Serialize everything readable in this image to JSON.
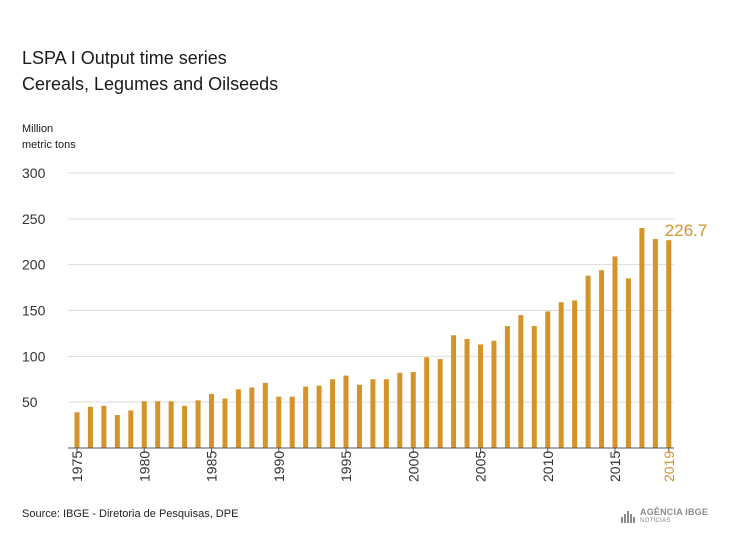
{
  "header": {
    "title_line1": "LSPA I Output time series",
    "title_line2": "Cereals, Legumes and Oilseeds",
    "unit_line1": "Million",
    "unit_line2": "metric tons"
  },
  "footer": {
    "source": "Source: IBGE - Diretoria de Pesquisas, DPE",
    "logo_main": "AGÊNCIA IBGE",
    "logo_sub": "NOTÍCIAS"
  },
  "colors": {
    "bar": "#d4942a",
    "highlight": "#d4942a",
    "grid": "#dddddd",
    "axis": "#555555",
    "text": "#333333"
  },
  "chart_data": {
    "type": "bar",
    "ylim": [
      0,
      300
    ],
    "yticks": [
      50,
      100,
      150,
      200,
      250,
      300
    ],
    "xtick_labels": [
      "1975",
      "1980",
      "1985",
      "1990",
      "1995",
      "2000",
      "2005",
      "2010",
      "2015",
      "2019"
    ],
    "highlight_label": "226.7",
    "highlight_year": "2019",
    "categories": [
      "1975",
      "1976",
      "1977",
      "1978",
      "1979",
      "1980",
      "1981",
      "1982",
      "1983",
      "1984",
      "1985",
      "1986",
      "1987",
      "1988",
      "1989",
      "1990",
      "1991",
      "1992",
      "1993",
      "1994",
      "1995",
      "1996",
      "1997",
      "1998",
      "1999",
      "2000",
      "2001",
      "2002",
      "2003",
      "2004",
      "2005",
      "2006",
      "2007",
      "2008",
      "2009",
      "2010",
      "2011",
      "2012",
      "2013",
      "2014",
      "2015",
      "2016",
      "2017",
      "2018",
      "2019"
    ],
    "values": [
      39,
      45,
      46,
      36,
      41,
      51,
      51,
      51,
      46,
      52,
      59,
      54,
      64,
      66,
      71,
      56,
      56,
      67,
      68,
      75,
      79,
      69,
      75,
      75,
      82,
      83,
      99,
      97,
      123,
      119,
      113,
      117,
      133,
      145,
      133,
      149,
      159,
      161,
      188,
      194,
      209,
      185,
      240,
      228,
      226.7
    ]
  }
}
